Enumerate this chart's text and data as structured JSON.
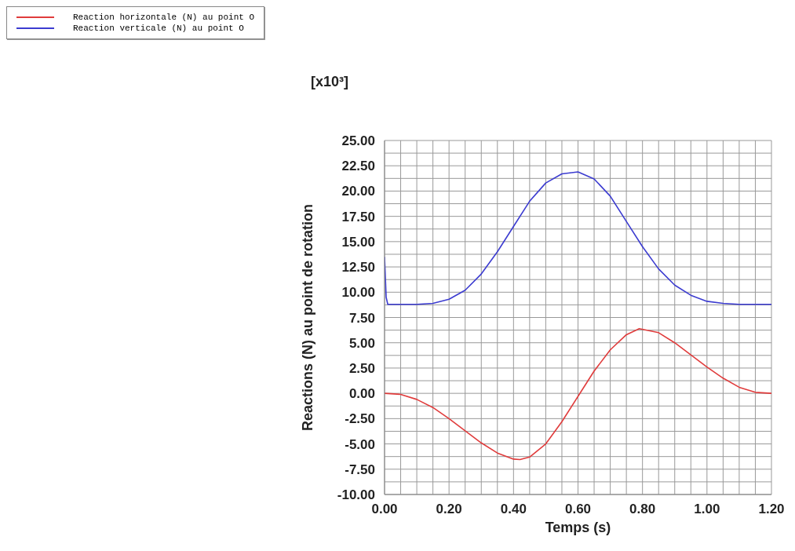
{
  "chart_data": {
    "type": "line",
    "xlabel": "Temps (s)",
    "ylabel": "Reactions (N) au point de rotation",
    "annotations": [
      "[x10³]"
    ],
    "xlim": [
      0,
      1.2
    ],
    "ylim": [
      -10,
      25
    ],
    "xticks": [
      {
        "value": 0,
        "label": "0.00"
      },
      {
        "value": 0.05,
        "label": null
      },
      {
        "value": 0.1,
        "label": null
      },
      {
        "value": 0.15,
        "label": null
      },
      {
        "value": 0.2,
        "label": "0.20"
      },
      {
        "value": 0.25,
        "label": null
      },
      {
        "value": 0.3,
        "label": null
      },
      {
        "value": 0.35,
        "label": null
      },
      {
        "value": 0.4,
        "label": "0.40"
      },
      {
        "value": 0.45,
        "label": null
      },
      {
        "value": 0.5,
        "label": null
      },
      {
        "value": 0.55,
        "label": null
      },
      {
        "value": 0.6,
        "label": "0.60"
      },
      {
        "value": 0.65,
        "label": null
      },
      {
        "value": 0.7,
        "label": null
      },
      {
        "value": 0.75,
        "label": null
      },
      {
        "value": 0.8,
        "label": "0.80"
      },
      {
        "value": 0.85,
        "label": null
      },
      {
        "value": 0.9,
        "label": null
      },
      {
        "value": 0.95,
        "label": null
      },
      {
        "value": 1,
        "label": "1.00"
      },
      {
        "value": 1.05,
        "label": null
      },
      {
        "value": 1.1,
        "label": null
      },
      {
        "value": 1.15,
        "label": null
      },
      {
        "value": 1.2,
        "label": "1.20"
      }
    ],
    "yticks": [
      {
        "value": -10,
        "label": "-10.00"
      },
      {
        "value": -8.75,
        "label": null
      },
      {
        "value": -7.5,
        "label": "-7.50"
      },
      {
        "value": -6.25,
        "label": null
      },
      {
        "value": -5,
        "label": "-5.00"
      },
      {
        "value": -3.75,
        "label": null
      },
      {
        "value": -2.5,
        "label": "-2.50"
      },
      {
        "value": -1.25,
        "label": null
      },
      {
        "value": 0,
        "label": "0.00"
      },
      {
        "value": 1.25,
        "label": null
      },
      {
        "value": 2.5,
        "label": "2.50"
      },
      {
        "value": 3.75,
        "label": null
      },
      {
        "value": 5,
        "label": "5.00"
      },
      {
        "value": 6.25,
        "label": null
      },
      {
        "value": 7.5,
        "label": "7.50"
      },
      {
        "value": 8.75,
        "label": null
      },
      {
        "value": 10,
        "label": "10.00"
      },
      {
        "value": 11.25,
        "label": null
      },
      {
        "value": 12.5,
        "label": "12.50"
      },
      {
        "value": 13.75,
        "label": null
      },
      {
        "value": 15,
        "label": "15.00"
      },
      {
        "value": 16.25,
        "label": null
      },
      {
        "value": 17.5,
        "label": "17.50"
      },
      {
        "value": 18.75,
        "label": null
      },
      {
        "value": 20,
        "label": "20.00"
      },
      {
        "value": 21.25,
        "label": null
      },
      {
        "value": 22.5,
        "label": "22.50"
      },
      {
        "value": 23.75,
        "label": null
      },
      {
        "value": 25,
        "label": "25.00"
      }
    ],
    "grid": true,
    "legend": "top left",
    "series": [
      {
        "name": "Reaction horizontale (N) au point O",
        "color": "#e03c3c",
        "x": [
          0,
          0.05,
          0.1,
          0.15,
          0.2,
          0.25,
          0.3,
          0.35,
          0.4,
          0.42,
          0.45,
          0.5,
          0.55,
          0.6,
          0.65,
          0.7,
          0.75,
          0.79,
          0.85,
          0.9,
          0.95,
          1,
          1.05,
          1.1,
          1.15,
          1.2
        ],
        "values": [
          0,
          -0.1,
          -0.6,
          -1.4,
          -2.5,
          -3.7,
          -4.9,
          -5.9,
          -6.5,
          -6.55,
          -6.3,
          -5,
          -2.8,
          -0.3,
          2.2,
          4.3,
          5.8,
          6.4,
          6,
          5,
          3.8,
          2.6,
          1.5,
          0.6,
          0.1,
          0
        ]
      },
      {
        "name": "Reaction verticale (N) au point O",
        "color": "#3c3cd0",
        "x": [
          0,
          0.005,
          0.01,
          0.05,
          0.1,
          0.15,
          0.2,
          0.25,
          0.3,
          0.35,
          0.4,
          0.45,
          0.5,
          0.55,
          0.6,
          0.65,
          0.7,
          0.75,
          0.8,
          0.85,
          0.9,
          0.95,
          1,
          1.05,
          1.1,
          1.2
        ],
        "values": [
          13.5,
          9.5,
          8.8,
          8.8,
          8.8,
          8.9,
          9.3,
          10.2,
          11.8,
          14,
          16.5,
          19,
          20.8,
          21.7,
          21.9,
          21.2,
          19.5,
          17,
          14.5,
          12.3,
          10.7,
          9.7,
          9.1,
          8.9,
          8.8,
          8.8
        ]
      }
    ]
  }
}
